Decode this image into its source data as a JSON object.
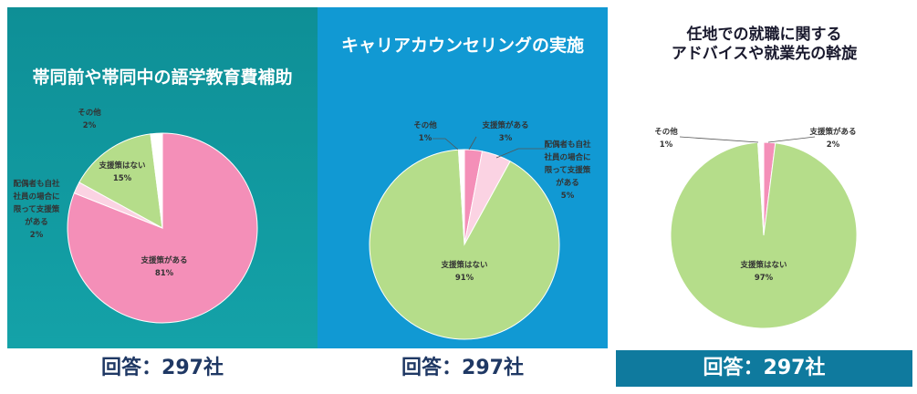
{
  "colors": {
    "support_yes": "#f48fb8",
    "limited": "#fbd3e3",
    "no_support": "#b5dd8a",
    "other": "#ffffff",
    "panel1_bg": "#0e8f96",
    "panel2_bg": "#1199d3",
    "footer3_bg": "#0f7a9e"
  },
  "panels": [
    {
      "title_lines": [
        "帯同前や帯同中の語学教育費補助"
      ],
      "footer": "回答：297社"
    },
    {
      "title_lines": [
        "キャリアカウンセリングの実施"
      ],
      "footer": "回答：297社"
    },
    {
      "title_lines": [
        "任地での就職に関する",
        "アドバイスや就業先の斡旋"
      ],
      "footer": "回答：297社"
    }
  ],
  "chart_data": [
    {
      "type": "pie",
      "title": "帯同前や帯同中の語学教育費補助",
      "slices": [
        {
          "label": [
            "支援策がある"
          ],
          "value": 81,
          "display": "81%"
        },
        {
          "label": [
            "配偶者も自社",
            "社員の場合に",
            "限って支援策",
            "がある"
          ],
          "value": 2,
          "display": "2%"
        },
        {
          "label": [
            "支援策はない"
          ],
          "value": 15,
          "display": "15%"
        },
        {
          "label": [
            "その他"
          ],
          "value": 2,
          "display": "2%"
        }
      ]
    },
    {
      "type": "pie",
      "title": "キャリアカウンセリングの実施",
      "slices": [
        {
          "label": [
            "支援策がある"
          ],
          "value": 3,
          "display": "3%"
        },
        {
          "label": [
            "配偶者も自社",
            "社員の場合に",
            "限って支援策",
            "がある"
          ],
          "value": 5,
          "display": "5%"
        },
        {
          "label": [
            "支援策はない"
          ],
          "value": 91,
          "display": "91%"
        },
        {
          "label": [
            "その他"
          ],
          "value": 1,
          "display": "1%"
        }
      ]
    },
    {
      "type": "pie",
      "title": "任地での就職に関するアドバイスや就業先の斡旋",
      "slices": [
        {
          "label": [
            "支援策がある"
          ],
          "value": 2,
          "display": "2%"
        },
        {
          "label": [
            "支援策はない"
          ],
          "value": 97,
          "display": "97%"
        },
        {
          "label": [
            "その他"
          ],
          "value": 1,
          "display": "1%"
        }
      ]
    }
  ]
}
